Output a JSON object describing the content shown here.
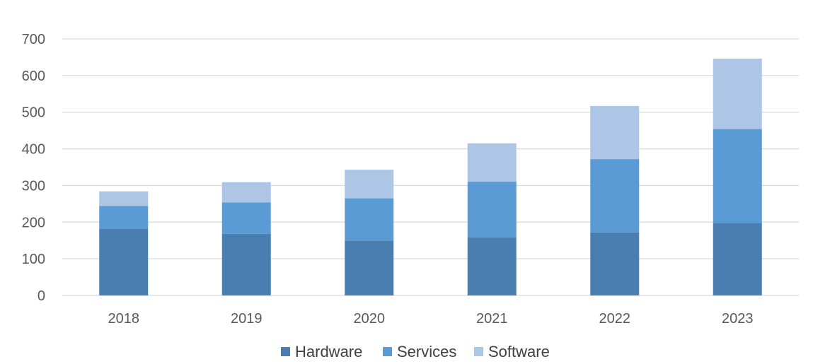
{
  "chart_data": {
    "type": "bar",
    "stacked": true,
    "categories": [
      "2018",
      "2019",
      "2020",
      "2021",
      "2022",
      "2023"
    ],
    "series": [
      {
        "name": "Hardware",
        "values": [
          182,
          168,
          150,
          158,
          172,
          198
        ],
        "color": "#4a7eb0"
      },
      {
        "name": "Services",
        "values": [
          62,
          86,
          115,
          153,
          200,
          256
        ],
        "color": "#5b9bd5"
      },
      {
        "name": "Software",
        "values": [
          40,
          55,
          78,
          104,
          145,
          192
        ],
        "color": "#aec6e6"
      }
    ],
    "yticks": [
      0,
      100,
      200,
      300,
      400,
      500,
      600,
      700
    ],
    "ylim": [
      0,
      700
    ],
    "grid": true,
    "legend": "bottom-center"
  }
}
